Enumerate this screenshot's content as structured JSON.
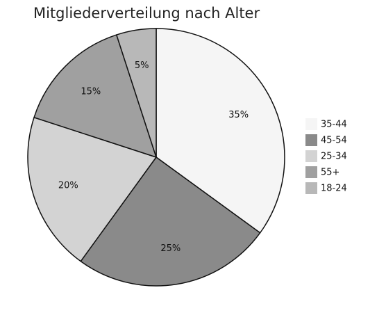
{
  "chart_data": {
    "type": "pie",
    "title": "Mitgliederverteilung nach Alter",
    "categories": [
      "35-44",
      "45-54",
      "25-34",
      "55+",
      "18-24"
    ],
    "values": [
      35,
      25,
      20,
      15,
      5
    ],
    "value_labels": [
      "35%",
      "25%",
      "20%",
      "15%",
      "5%"
    ],
    "colors": [
      "#f5f5f5",
      "#8a8a8a",
      "#d3d3d3",
      "#a0a0a0",
      "#b8b8b8"
    ],
    "legend": "right"
  }
}
